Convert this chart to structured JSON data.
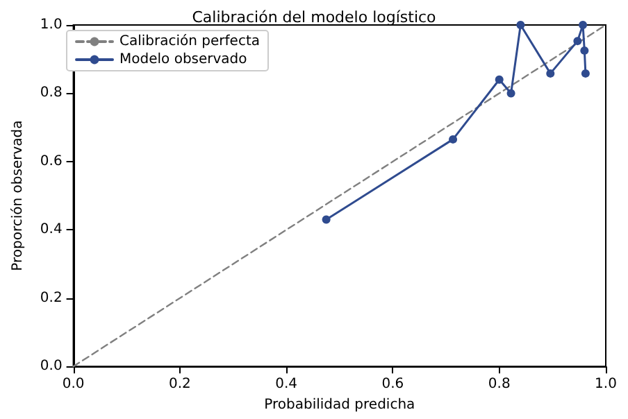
{
  "chart_data": {
    "type": "line",
    "title": "Calibración del modelo logístico",
    "xlabel": "Probabilidad predicha",
    "ylabel": "Proporción observada",
    "series": [
      {
        "name": "Calibración perfecta",
        "color": "#808080",
        "line_style": "dashed",
        "marker": "none",
        "x": [
          0,
          1
        ],
        "values": [
          0,
          1
        ]
      },
      {
        "name": "Modelo observado",
        "color": "#2f4b8f",
        "line_style": "solid",
        "marker": "circle",
        "x": [
          0.475,
          0.713,
          0.8,
          0.822,
          0.84,
          0.896,
          0.947,
          0.957,
          0.96,
          0.962
        ],
        "values": [
          0.43,
          0.665,
          0.84,
          0.8,
          1.0,
          0.858,
          0.953,
          1.0,
          0.925,
          0.858
        ]
      }
    ],
    "xlim": [
      0,
      1
    ],
    "xticks": [
      {
        "value": 0,
        "label": "0.0"
      },
      0.2,
      0.4,
      0.6,
      0.8,
      {
        "value": 1,
        "label": "1.0"
      }
    ],
    "ylim": [
      0,
      1
    ],
    "yticks": [
      {
        "value": 0,
        "label": "0.0"
      },
      0.2,
      0.4,
      0.6,
      0.8,
      {
        "value": 1,
        "label": "1.0"
      }
    ],
    "grid": false,
    "legend": "top left"
  }
}
